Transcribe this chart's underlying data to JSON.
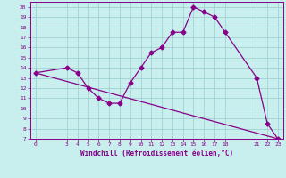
{
  "line1_x": [
    0,
    3,
    4,
    5,
    6,
    7,
    8,
    9,
    10,
    11,
    12,
    13,
    14,
    15,
    16,
    17,
    18,
    21,
    22,
    23
  ],
  "line1_y": [
    13.5,
    14.0,
    13.5,
    12.0,
    11.0,
    10.5,
    10.5,
    12.5,
    14.0,
    15.5,
    16.0,
    17.5,
    17.5,
    20.0,
    19.5,
    19.0,
    17.5,
    13.0,
    8.5,
    7.0
  ],
  "line2_x": [
    0,
    23
  ],
  "line2_y": [
    13.5,
    7.0
  ],
  "line_color": "#880088",
  "bg_color": "#c8eeee",
  "grid_color": "#99cccc",
  "xlabel": "Windchill (Refroidissement éolien,°C)",
  "xlim": [
    -0.5,
    23.5
  ],
  "ylim": [
    7,
    20.5
  ],
  "xticks": [
    0,
    3,
    4,
    5,
    6,
    7,
    8,
    9,
    10,
    11,
    12,
    13,
    14,
    15,
    16,
    17,
    18,
    21,
    22,
    23
  ],
  "yticks": [
    7,
    8,
    9,
    10,
    11,
    12,
    13,
    14,
    15,
    16,
    17,
    18,
    19,
    20
  ],
  "marker": "D",
  "markersize": 2.5,
  "linewidth": 0.9
}
